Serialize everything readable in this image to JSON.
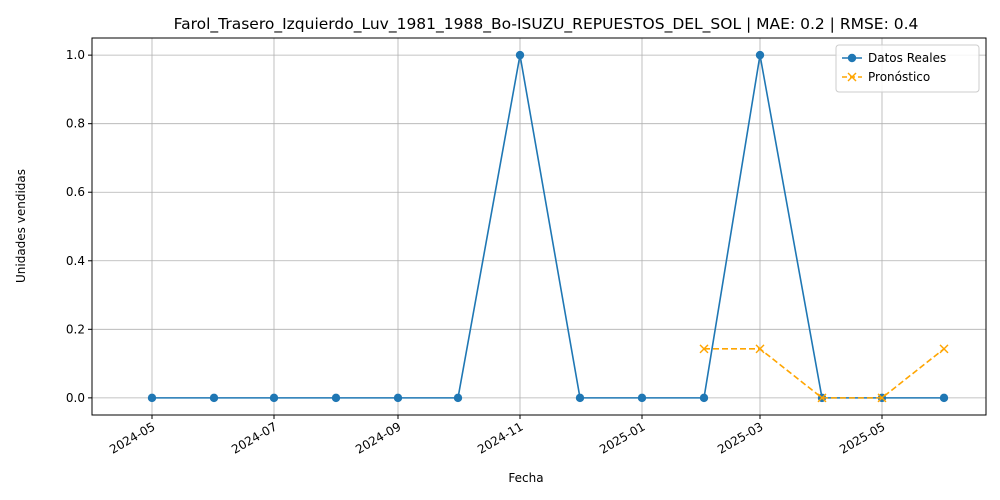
{
  "chart_data": {
    "type": "line",
    "title": "Farol_Trasero_Izquierdo_Luv_1981_1988_Bo-ISUZU_REPUESTOS_DEL_SOL | MAE: 0.2 | RMSE: 0.4",
    "xlabel": "Fecha",
    "ylabel": "Unidades vendidas",
    "x_ticks": [
      "2024-05",
      "2024-07",
      "2024-09",
      "2024-11",
      "2025-01",
      "2025-03",
      "2025-05"
    ],
    "y_ticks": [
      "0.0",
      "0.2",
      "0.4",
      "0.6",
      "0.8",
      "1.0"
    ],
    "xlim": [
      "2024-04-01",
      "2025-06-22"
    ],
    "ylim": [
      -0.05,
      1.05
    ],
    "grid": true,
    "legend_position": "top-right",
    "series": [
      {
        "name": "Datos Reales",
        "color": "#1f77b4",
        "marker": "circle",
        "line_style": "solid",
        "x": [
          "2024-05-01",
          "2024-06-01",
          "2024-07-01",
          "2024-08-01",
          "2024-09-01",
          "2024-10-01",
          "2024-11-01",
          "2024-12-01",
          "2025-01-01",
          "2025-02-01",
          "2025-03-01",
          "2025-04-01",
          "2025-05-01",
          "2025-06-01"
        ],
        "values": [
          0,
          0,
          0,
          0,
          0,
          0,
          1,
          0,
          0,
          0,
          1,
          0,
          0,
          0
        ]
      },
      {
        "name": "Pronóstico",
        "color": "#ffa500",
        "marker": "x",
        "line_style": "dashed",
        "x": [
          "2025-02-01",
          "2025-03-01",
          "2025-04-01",
          "2025-05-01",
          "2025-06-01"
        ],
        "values": [
          0.143,
          0.143,
          0,
          0,
          0.143
        ]
      }
    ]
  }
}
